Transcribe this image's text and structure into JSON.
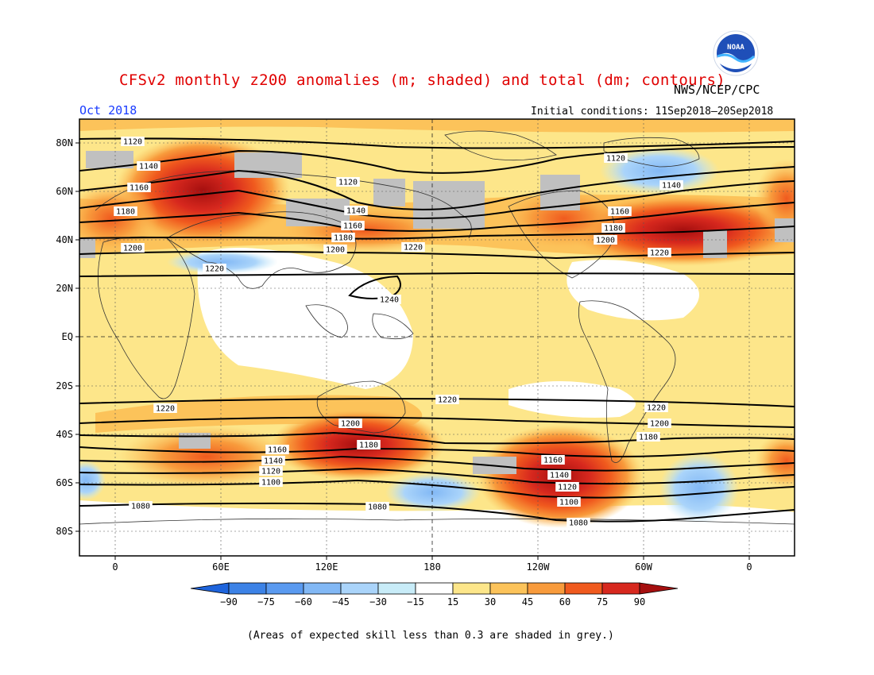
{
  "title": "CFSv2 monthly z200 anomalies (m; shaded) and total (dm; contours)",
  "agency": "NWS/NCEP/CPC",
  "logo_text": "NOAA",
  "month": "Oct 2018",
  "initial_conditions": "Initial conditions: 11Sep2018–20Sep2018",
  "footnote": "(Areas of expected skill less than 0.3 are shaded in grey.)",
  "map": {
    "lat_labels": [
      "80N",
      "60N",
      "40N",
      "20N",
      "EQ",
      "20S",
      "40S",
      "60S",
      "80S"
    ],
    "lon_labels": [
      "0",
      "60E",
      "120E",
      "180",
      "120W",
      "60W",
      "0"
    ],
    "contour_labels": [
      "1080",
      "1100",
      "1120",
      "1140",
      "1160",
      "1180",
      "1200",
      "1220",
      "1240"
    ]
  },
  "colorbar": {
    "labels": [
      "−90",
      "−75",
      "−60",
      "−45",
      "−30",
      "−15",
      "15",
      "30",
      "45",
      "60",
      "75",
      "90"
    ],
    "colors": [
      "#1e64dc",
      "#3c82e6",
      "#5a9af0",
      "#82b8f5",
      "#aad4fa",
      "#c8ecf8",
      "#ffffff",
      "#fde68a",
      "#fcc35a",
      "#f89b3c",
      "#f05a1e",
      "#d7281e",
      "#a50f0f"
    ]
  },
  "colors": {
    "title": "#e00000",
    "month": "#1a3cff",
    "grey_low_skill": "#c0c0c0"
  }
}
